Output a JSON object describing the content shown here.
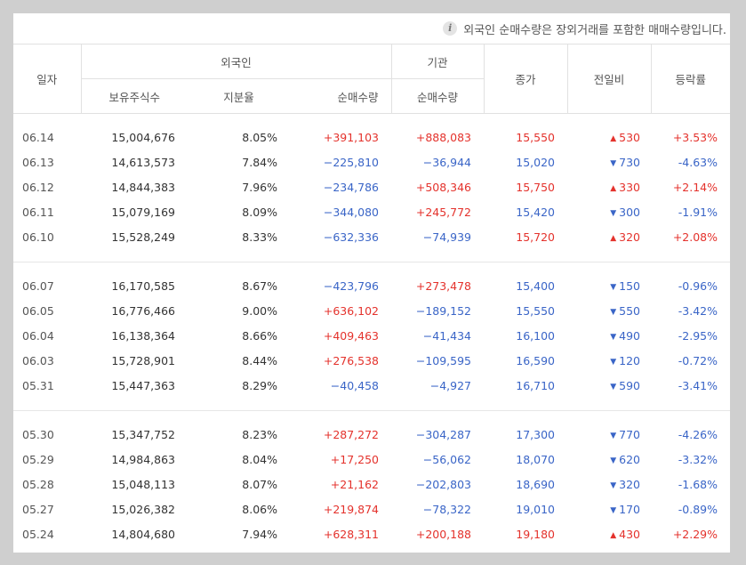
{
  "notice": {
    "icon": "info-icon",
    "text": "외국인 순매수량은 장외거래를 포함한 매매수량입니다."
  },
  "header": {
    "date": "일자",
    "foreign": "외국인",
    "institution": "기관",
    "close": "종가",
    "change": "전일비",
    "rate": "등락률",
    "holdings": "보유주식수",
    "share": "지분율",
    "foreign_net": "순매수량",
    "inst_net": "순매수량"
  },
  "colors": {
    "up": "#e4322c",
    "down": "#3a65c7"
  },
  "groups": [
    [
      {
        "date": "06.14",
        "holdings": "15,004,676",
        "share": "8.05%",
        "foreign_net": "+391,103",
        "fdir": "up",
        "inst_net": "+888,083",
        "idir": "up",
        "close": "15,550",
        "cdir": "up",
        "change": "530",
        "dir": "up",
        "rate": "+3.53%"
      },
      {
        "date": "06.13",
        "holdings": "14,613,573",
        "share": "7.84%",
        "foreign_net": "−225,810",
        "fdir": "down",
        "inst_net": "−36,944",
        "idir": "down",
        "close": "15,020",
        "cdir": "down",
        "change": "730",
        "dir": "down",
        "rate": "-4.63%"
      },
      {
        "date": "06.12",
        "holdings": "14,844,383",
        "share": "7.96%",
        "foreign_net": "−234,786",
        "fdir": "down",
        "inst_net": "+508,346",
        "idir": "up",
        "close": "15,750",
        "cdir": "up",
        "change": "330",
        "dir": "up",
        "rate": "+2.14%"
      },
      {
        "date": "06.11",
        "holdings": "15,079,169",
        "share": "8.09%",
        "foreign_net": "−344,080",
        "fdir": "down",
        "inst_net": "+245,772",
        "idir": "up",
        "close": "15,420",
        "cdir": "down",
        "change": "300",
        "dir": "down",
        "rate": "-1.91%"
      },
      {
        "date": "06.10",
        "holdings": "15,528,249",
        "share": "8.33%",
        "foreign_net": "−632,336",
        "fdir": "down",
        "inst_net": "−74,939",
        "idir": "down",
        "close": "15,720",
        "cdir": "up",
        "change": "320",
        "dir": "up",
        "rate": "+2.08%"
      }
    ],
    [
      {
        "date": "06.07",
        "holdings": "16,170,585",
        "share": "8.67%",
        "foreign_net": "−423,796",
        "fdir": "down",
        "inst_net": "+273,478",
        "idir": "up",
        "close": "15,400",
        "cdir": "down",
        "change": "150",
        "dir": "down",
        "rate": "-0.96%"
      },
      {
        "date": "06.05",
        "holdings": "16,776,466",
        "share": "9.00%",
        "foreign_net": "+636,102",
        "fdir": "up",
        "inst_net": "−189,152",
        "idir": "down",
        "close": "15,550",
        "cdir": "down",
        "change": "550",
        "dir": "down",
        "rate": "-3.42%"
      },
      {
        "date": "06.04",
        "holdings": "16,138,364",
        "share": "8.66%",
        "foreign_net": "+409,463",
        "fdir": "up",
        "inst_net": "−41,434",
        "idir": "down",
        "close": "16,100",
        "cdir": "down",
        "change": "490",
        "dir": "down",
        "rate": "-2.95%"
      },
      {
        "date": "06.03",
        "holdings": "15,728,901",
        "share": "8.44%",
        "foreign_net": "+276,538",
        "fdir": "up",
        "inst_net": "−109,595",
        "idir": "down",
        "close": "16,590",
        "cdir": "down",
        "change": "120",
        "dir": "down",
        "rate": "-0.72%"
      },
      {
        "date": "05.31",
        "holdings": "15,447,363",
        "share": "8.29%",
        "foreign_net": "−40,458",
        "fdir": "down",
        "inst_net": "−4,927",
        "idir": "down",
        "close": "16,710",
        "cdir": "down",
        "change": "590",
        "dir": "down",
        "rate": "-3.41%"
      }
    ],
    [
      {
        "date": "05.30",
        "holdings": "15,347,752",
        "share": "8.23%",
        "foreign_net": "+287,272",
        "fdir": "up",
        "inst_net": "−304,287",
        "idir": "down",
        "close": "17,300",
        "cdir": "down",
        "change": "770",
        "dir": "down",
        "rate": "-4.26%"
      },
      {
        "date": "05.29",
        "holdings": "14,984,863",
        "share": "8.04%",
        "foreign_net": "+17,250",
        "fdir": "up",
        "inst_net": "−56,062",
        "idir": "down",
        "close": "18,070",
        "cdir": "down",
        "change": "620",
        "dir": "down",
        "rate": "-3.32%"
      },
      {
        "date": "05.28",
        "holdings": "15,048,113",
        "share": "8.07%",
        "foreign_net": "+21,162",
        "fdir": "up",
        "inst_net": "−202,803",
        "idir": "down",
        "close": "18,690",
        "cdir": "down",
        "change": "320",
        "dir": "down",
        "rate": "-1.68%"
      },
      {
        "date": "05.27",
        "holdings": "15,026,382",
        "share": "8.06%",
        "foreign_net": "+219,874",
        "fdir": "up",
        "inst_net": "−78,322",
        "idir": "down",
        "close": "19,010",
        "cdir": "down",
        "change": "170",
        "dir": "down",
        "rate": "-0.89%"
      },
      {
        "date": "05.24",
        "holdings": "14,804,680",
        "share": "7.94%",
        "foreign_net": "+628,311",
        "fdir": "up",
        "inst_net": "+200,188",
        "idir": "up",
        "close": "19,180",
        "cdir": "up",
        "change": "430",
        "dir": "up",
        "rate": "+2.29%"
      }
    ]
  ]
}
